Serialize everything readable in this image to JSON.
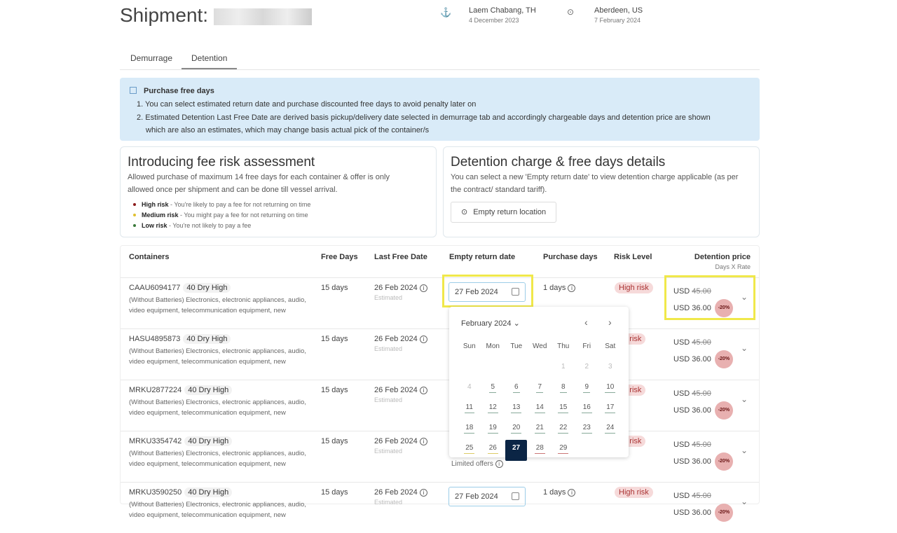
{
  "header": {
    "title": "Shipment:",
    "origin": {
      "name": "Laem Chabang, TH",
      "date": "4 December 2023",
      "icon": "anchor-icon"
    },
    "destination": {
      "name": "Aberdeen, US",
      "date": "7 February 2024",
      "icon": "location-pin-icon"
    }
  },
  "tabs": [
    {
      "label": "Demurrage",
      "active": false
    },
    {
      "label": "Detention",
      "active": true
    }
  ],
  "info": {
    "title": "Purchase free days",
    "lines": [
      "1. You can select estimated return date and purchase discounted free days to avoid penalty later on",
      "2. Estimated Detention Last Free Date are derived basis pickup/delivery date selected in demurrage tab and accordingly chargeable days and detention price are shown",
      "which are also an estimates, which may change basis actual pick of the container/s"
    ]
  },
  "risk_card": {
    "title": "Introducing fee risk assessment",
    "text": "Allowed purchase of maximum 14 free days for each container & offer is only allowed once per shipment and can be done till vessel arrival.",
    "levels": [
      {
        "label": "High risk",
        "desc": " - You're likely to pay a fee for not returning on time",
        "color": "#8b1a1a"
      },
      {
        "label": "Medium risk",
        "desc": " - You might pay a fee for not returning on time",
        "color": "#e0c030"
      },
      {
        "label": "Low risk",
        "desc": " - You're not likely to pay a fee",
        "color": "#3a7a3a"
      }
    ]
  },
  "detention_card": {
    "title": "Detention charge & free days details",
    "text": "You can select a new 'Empty return date' to view detention charge applicable (as per the contract/ standard tariff).",
    "button": "Empty return location"
  },
  "table": {
    "headers": [
      "Containers",
      "Free Days",
      "Last Free Date",
      "Empty return date",
      "Purchase days",
      "Risk Level",
      "Detention price"
    ],
    "price_sub": "Days X Rate",
    "rows": [
      {
        "id": "CAAU6094177",
        "type": "40 Dry High",
        "desc": "(Without Batteries) Electronics, electronic appliances, audio, video equipment, telecommunication equipment, new",
        "free_days": "15 days",
        "last_free": "26 Feb 2024",
        "est": "Estimated",
        "return_date": "27 Feb 2024",
        "purchase": "1 days",
        "risk": "High risk",
        "old_price": "USD 45.00",
        "new_price": "USD 36.00",
        "discount": "-20%"
      },
      {
        "id": "HASU4895873",
        "type": "40 Dry High",
        "desc": "(Without Batteries) Electronics, electronic appliances, audio, video equipment, telecommunication equipment, new",
        "free_days": "15 days",
        "last_free": "26 Feb 2024",
        "est": "Estimated",
        "risk": "gh risk",
        "old_price": "USD 45.00",
        "new_price": "USD 36.00",
        "discount": "-20%"
      },
      {
        "id": "MRKU2877224",
        "type": "40 Dry High",
        "desc": "(Without Batteries) Electronics, electronic appliances, audio, video equipment, telecommunication equipment, new",
        "free_days": "15 days",
        "last_free": "26 Feb 2024",
        "est": "Estimated",
        "risk": "gh risk",
        "old_price": "USD 45.00",
        "new_price": "USD 36.00",
        "discount": "-20%"
      },
      {
        "id": "MRKU3354742",
        "type": "40 Dry High",
        "desc": "(Without Batteries) Electronics, electronic appliances, audio, video equipment, telecommunication equipment, new",
        "free_days": "15 days",
        "last_free": "26 Feb 2024",
        "est": "Estimated",
        "risk": "gh risk",
        "old_price": "USD 45.00",
        "new_price": "USD 36.00",
        "discount": "-20%",
        "limited": "Limited offers"
      },
      {
        "id": "MRKU3590250",
        "type": "40 Dry High",
        "desc": "(Without Batteries) Electronics, electronic appliances, audio, video equipment, telecommunication equipment, new",
        "free_days": "15 days",
        "last_free": "26 Feb 2024",
        "est": "Estimated",
        "return_date": "27 Feb 2024",
        "purchase": "1 days",
        "risk": "High risk",
        "old_price": "USD 45.00",
        "new_price": "USD 36.00",
        "discount": "-20%"
      }
    ]
  },
  "calendar": {
    "month": "February 2024",
    "weekdays": [
      "Sun",
      "Mon",
      "Tue",
      "Wed",
      "Thu",
      "Fri",
      "Sat"
    ],
    "first_weekday": 4,
    "days": 29,
    "selected": 27,
    "disabled": [
      1,
      2,
      3,
      4
    ],
    "low_risk": [
      5,
      6,
      7,
      8,
      9,
      10,
      11,
      12,
      13,
      14,
      15,
      16,
      17,
      18,
      19,
      20,
      21,
      22,
      23,
      24
    ],
    "medium_risk": [
      25,
      26
    ],
    "high_risk": [
      28,
      29
    ]
  },
  "colors": {
    "info_bg": "#d9ebf8",
    "selected_day": "#0b2545",
    "highlight": "#f0e84a",
    "risk_badge": "#f6dada"
  }
}
